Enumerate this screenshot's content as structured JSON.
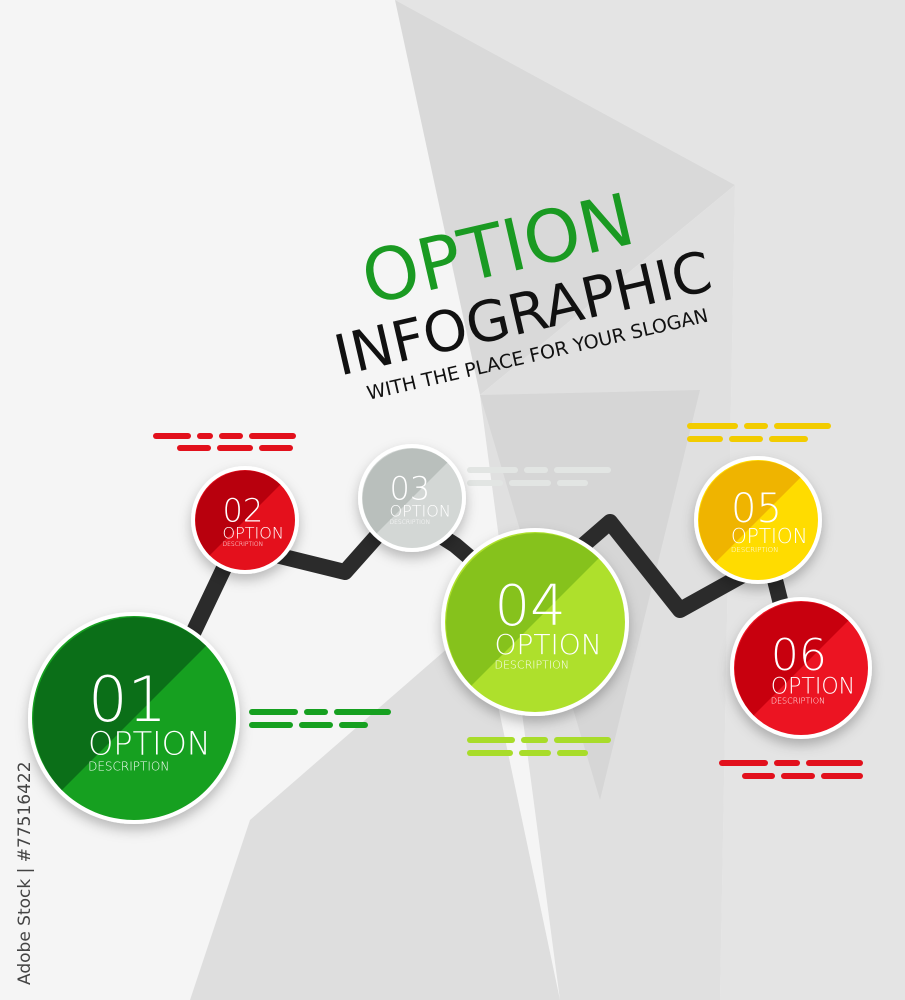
{
  "title": {
    "line1": "OPTION",
    "line2": "INFOGRAPHIC",
    "slogan": "WITH THE PLACE FOR YOUR SLOGAN"
  },
  "colors": {
    "title_green": "#1a9a22",
    "title_black": "#111111",
    "connector": "#2b2b2b"
  },
  "options": [
    {
      "number": "01",
      "label": "OPTION",
      "description": "DESCRIPTION",
      "color_dark": "#0b6f18",
      "color_light": "#16a020"
    },
    {
      "number": "02",
      "label": "OPTION",
      "description": "DESCRIPTION",
      "color_dark": "#b8000d",
      "color_light": "#e4101c"
    },
    {
      "number": "03",
      "label": "OPTION",
      "description": "DESCRIPTION",
      "color_dark": "#b9bfbc",
      "color_light": "#d3d7d5"
    },
    {
      "number": "04",
      "label": "OPTION",
      "description": "DESCRIPTION",
      "color_dark": "#86c21c",
      "color_light": "#aee02c"
    },
    {
      "number": "05",
      "label": "OPTION",
      "description": "DESCRIPTION",
      "color_dark": "#efb400",
      "color_light": "#ffdc00"
    },
    {
      "number": "06",
      "label": "OPTION",
      "description": "DESCRIPTION",
      "color_dark": "#c8000e",
      "color_light": "#ec1422"
    }
  ],
  "watermark": {
    "text": "Adobe Stock | #77516422"
  }
}
